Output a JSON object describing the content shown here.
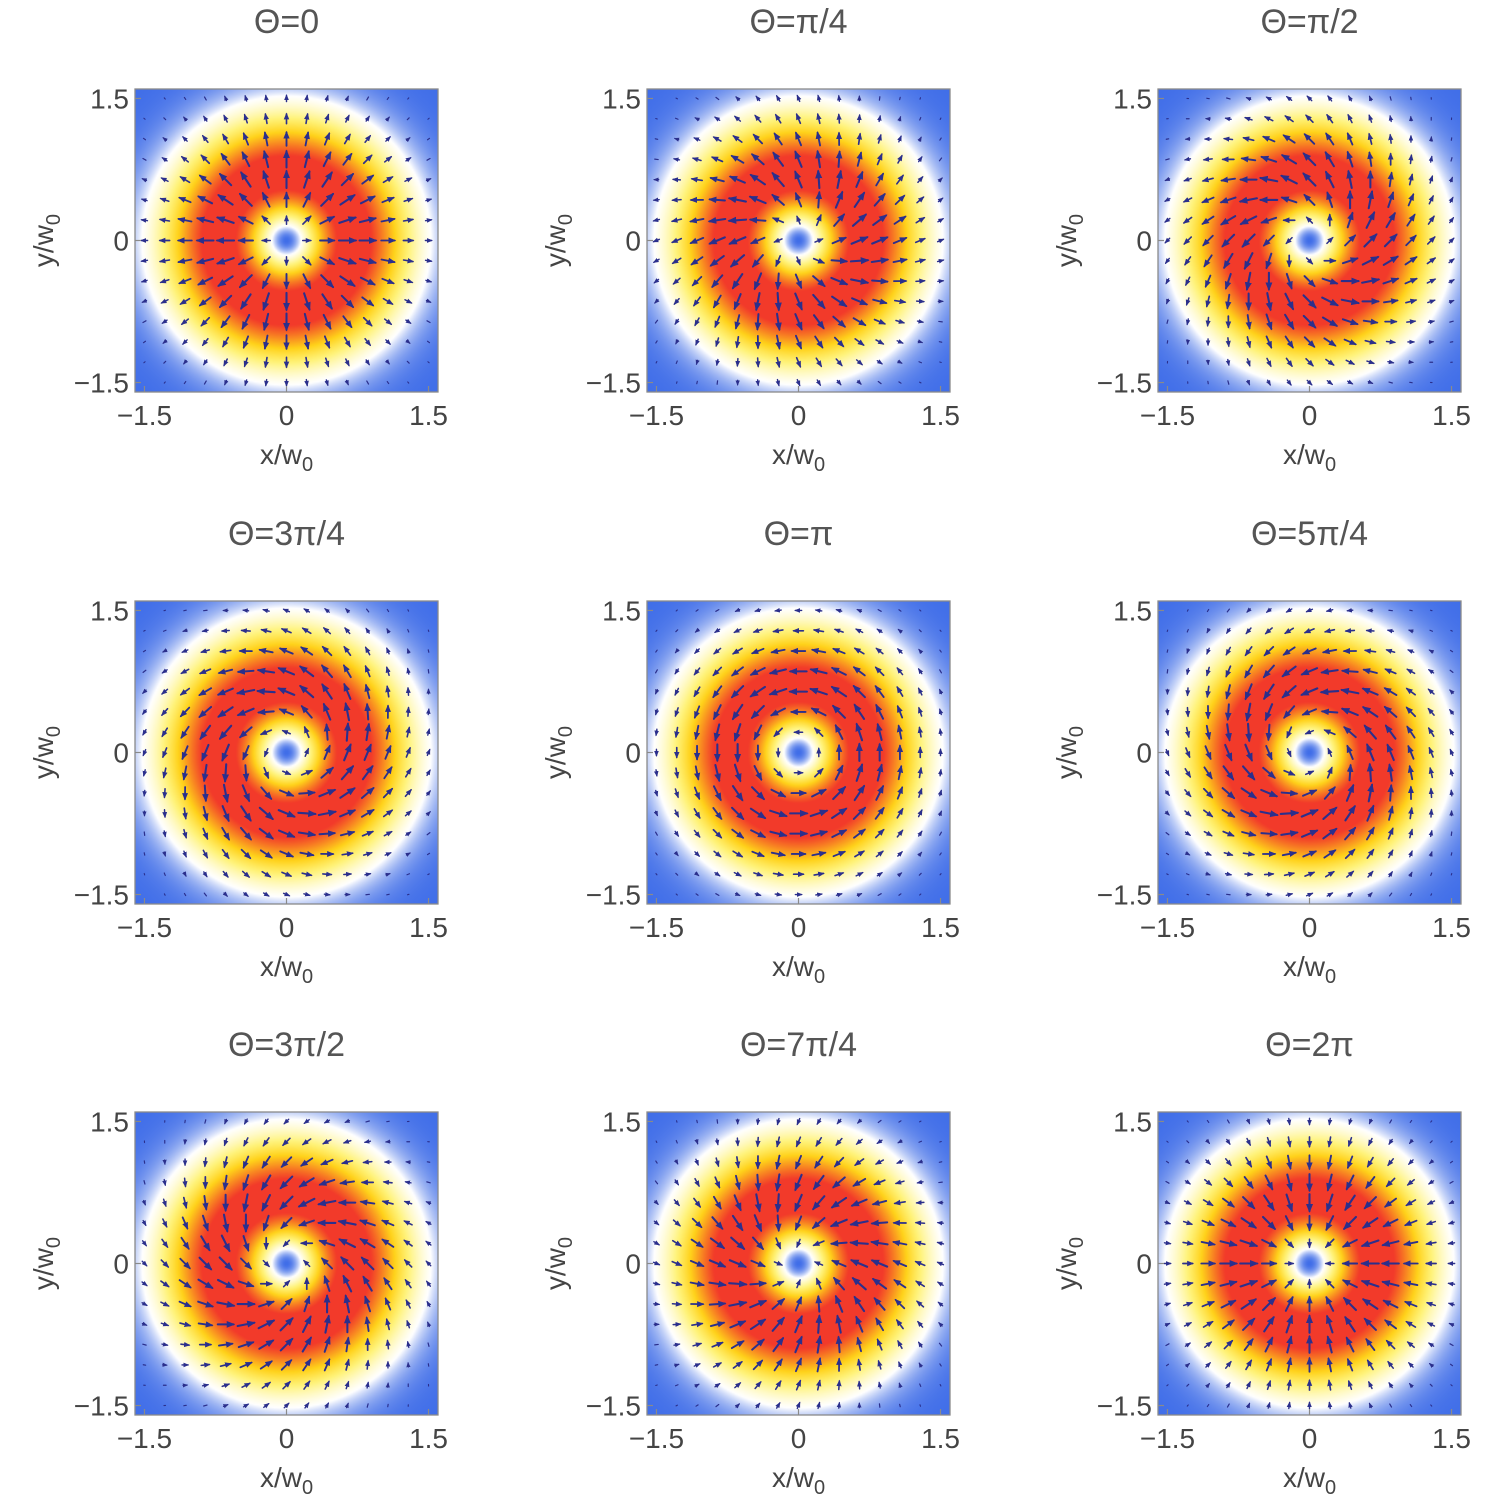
{
  "chart_data": {
    "type": "heatmap",
    "description_of_marks": "intensity density plot with overlaid polarization vector field",
    "layout": "3x3 grid of panels",
    "shared_axes": {
      "xlabel": {
        "base": "x/w",
        "subscript": "0"
      },
      "ylabel": {
        "base": "y/w",
        "subscript": "0"
      },
      "xlim": [
        -1.6,
        1.6
      ],
      "ylim": [
        -1.6,
        1.6
      ],
      "ticks": [
        -1.5,
        0,
        1.5
      ],
      "tick_labels": [
        "−1.5",
        "0",
        "1.5"
      ]
    },
    "intensity": {
      "profile": "doughnut (Laguerre-Gauss LG01)",
      "peak_radius": 0.71,
      "colormap": [
        "#3f6de8",
        "#ffffff",
        "#fff37a",
        "#ffd21a",
        "#f23a2a"
      ]
    },
    "vector_field": {
      "color": "#2b2f8c",
      "grid_points": 15,
      "direction_rule": "radial unit vector rotated by Theta/2"
    },
    "panels": [
      {
        "title": "Θ=0",
        "theta_over_pi": 0
      },
      {
        "title": "Θ=π/4",
        "theta_over_pi": 0.25
      },
      {
        "title": "Θ=π/2",
        "theta_over_pi": 0.5
      },
      {
        "title": "Θ=3π/4",
        "theta_over_pi": 0.75
      },
      {
        "title": "Θ=π",
        "theta_over_pi": 1
      },
      {
        "title": "Θ=5π/4",
        "theta_over_pi": 1.25
      },
      {
        "title": "Θ=3π/2",
        "theta_over_pi": 1.5
      },
      {
        "title": "Θ=7π/4",
        "theta_over_pi": 1.75
      },
      {
        "title": "Θ=2π",
        "theta_over_pi": 2
      }
    ]
  }
}
